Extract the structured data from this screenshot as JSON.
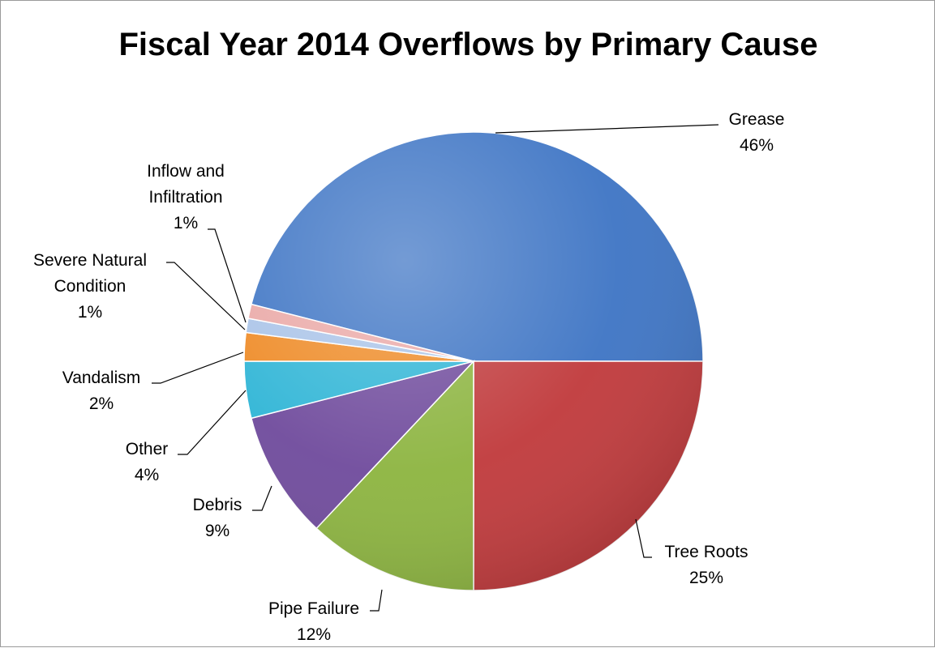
{
  "chart_data": {
    "type": "pie",
    "title": "Fiscal Year 2014 Overflows by Primary Cause",
    "slices": [
      {
        "label": "Grease",
        "value": 46,
        "value_label": "46%",
        "color": "#3d74c4"
      },
      {
        "label": "Tree Roots",
        "value": 25,
        "value_label": "25%",
        "color": "#c0393b"
      },
      {
        "label": "Pipe Failure",
        "value": 12,
        "value_label": "12%",
        "color": "#8cb43f"
      },
      {
        "label": "Debris",
        "value": 9,
        "value_label": "9%",
        "color": "#6f4a9c"
      },
      {
        "label": "Other",
        "value": 4,
        "value_label": "4%",
        "color": "#2fb5d6"
      },
      {
        "label": "Vandalism",
        "value": 2,
        "value_label": "2%",
        "color": "#ee8a25"
      },
      {
        "label": "Severe Natural Condition",
        "value": 1,
        "value_label": "1%",
        "color": "#a9c3e8"
      },
      {
        "label": "Inflow and Infiltration",
        "value": 1,
        "value_label": "1%",
        "color": "#eaa8a6"
      }
    ],
    "legend": "none",
    "data_labels": "outside-with-leader-lines"
  }
}
